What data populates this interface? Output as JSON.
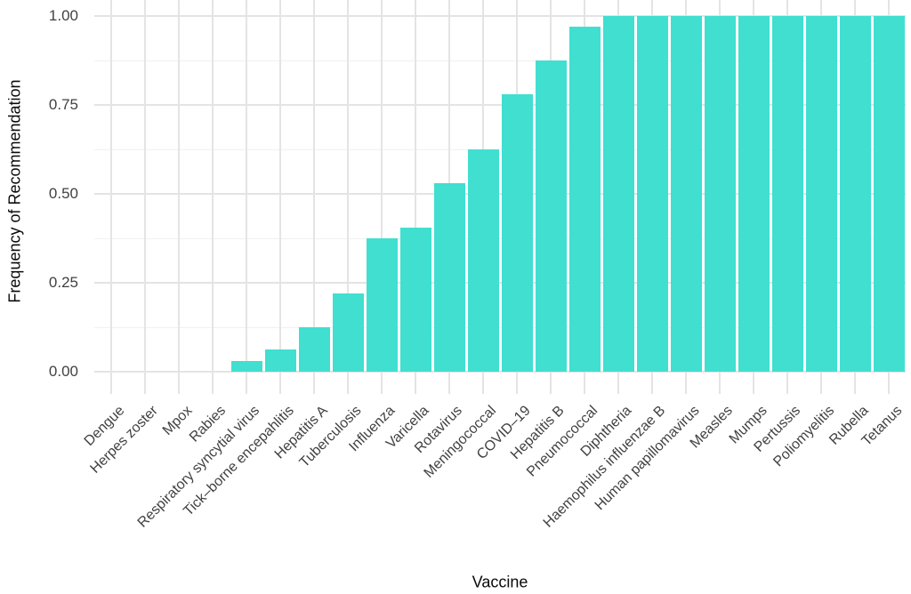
{
  "chart_data": {
    "type": "bar",
    "title": "",
    "xlabel": "Vaccine",
    "ylabel": "Frequency of Recommendation",
    "categories": [
      "Dengue",
      "Herpes zoster",
      "Mpox",
      "Rabies",
      "Respiratory syncytial virus",
      "Tick–borne encepahlitis",
      "Hepatitis A",
      "Tuberculosis",
      "Influenza",
      "Varicella",
      "Rotavirus",
      "Meningococcal",
      "COVID–19",
      "Hepatitis B",
      "Pneumococcal",
      "Diphtheria",
      "Haemophilus influenzae B",
      "Human papillomavirus",
      "Measles",
      "Mumps",
      "Pertussis",
      "Poliomyelitis",
      "Rubella",
      "Tetanus"
    ],
    "values": [
      0,
      0,
      0,
      0,
      0.031,
      0.063,
      0.125,
      0.219,
      0.375,
      0.406,
      0.531,
      0.625,
      0.781,
      0.875,
      0.969,
      1,
      1,
      1,
      1,
      1,
      1,
      1,
      1,
      1
    ],
    "ylim": [
      0,
      1
    ],
    "y_ticks": [
      {
        "value": 1.0,
        "label": "1.00"
      },
      {
        "value": 0.75,
        "label": "0.75"
      },
      {
        "value": 0.5,
        "label": "0.50"
      },
      {
        "value": 0.25,
        "label": "0.25"
      },
      {
        "value": 0.0,
        "label": "0.00"
      }
    ],
    "y_minor_ticks": [
      0.125,
      0.375,
      0.625,
      0.875
    ],
    "x_tick_angle": 45,
    "legend": "none",
    "grid": {
      "major_y": true,
      "minor_y": true,
      "major_x": true
    },
    "colors": {
      "bar": "#40DFD0",
      "grid_major": "#E4E4E4",
      "grid_minor": "#F0F0F0",
      "tick_label": "#414141",
      "axis_title": "#0A0A0A",
      "background": "#FFFFFF"
    }
  }
}
